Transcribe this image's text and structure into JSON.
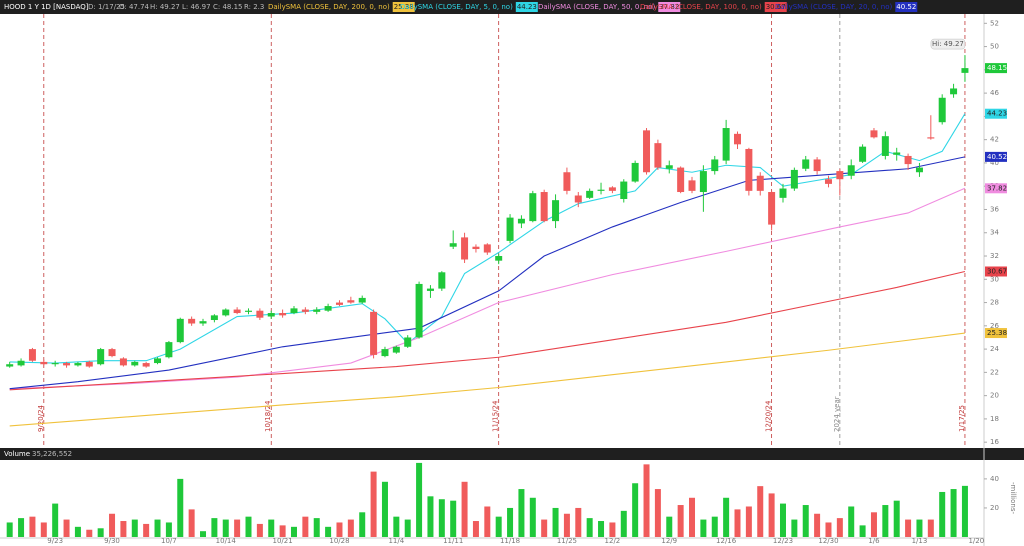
{
  "header": {
    "symbol": "HOOD 1 Y 1D [NASDAQ]",
    "date": "D: 1/17/25",
    "open": "O: 47.74",
    "high": "H: 49.27",
    "low": "L: 46.97",
    "close": "C: 48.15",
    "range": "R: 2.3"
  },
  "chart_data": [
    {
      "type": "candlestick",
      "categories": [
        null,
        null,
        null,
        null,
        "9/23",
        null,
        null,
        null,
        null,
        "9/30",
        null,
        null,
        null,
        null,
        "10/7",
        null,
        null,
        null,
        null,
        "10/14",
        null,
        null,
        null,
        null,
        "10/21",
        null,
        null,
        null,
        null,
        "10/28",
        null,
        null,
        null,
        null,
        "11/4",
        null,
        null,
        null,
        null,
        "11/11",
        null,
        null,
        null,
        null,
        "11/18",
        null,
        null,
        null,
        null,
        "11/25",
        null,
        null,
        null,
        "12/2",
        null,
        null,
        null,
        null,
        "12/9",
        null,
        null,
        null,
        null,
        "12/16",
        null,
        null,
        null,
        null,
        "12/23",
        null,
        null,
        null,
        "12/30",
        null,
        null,
        null,
        "1/6",
        null,
        null,
        null,
        "1/13",
        null,
        null,
        null,
        null,
        "1/20"
      ],
      "open": [
        22.5,
        22.6,
        24.0,
        22.9,
        22.7,
        22.8,
        22.6,
        22.9,
        22.7,
        24.0,
        23.2,
        22.6,
        22.8,
        22.8,
        23.3,
        24.6,
        26.6,
        26.2,
        26.5,
        26.9,
        27.4,
        27.2,
        27.3,
        26.8,
        27.1,
        27.1,
        27.4,
        27.2,
        27.3,
        28.0,
        28.2,
        28.0,
        27.2,
        23.4,
        23.7,
        24.2,
        25.0,
        29.0,
        29.2,
        32.8,
        33.6,
        32.8,
        33.0,
        31.6,
        33.3,
        34.8,
        35.0,
        37.5,
        35.0,
        39.2,
        37.2,
        37.0,
        37.6,
        37.9,
        36.9,
        38.4,
        42.8,
        41.7,
        39.5,
        39.6,
        38.5,
        37.5,
        39.3,
        40.2,
        42.5,
        41.2,
        38.9,
        37.5,
        37.0,
        37.8,
        39.5,
        40.3,
        38.6,
        39.3,
        38.9,
        40.1,
        42.8,
        40.6,
        40.7,
        40.6,
        39.2,
        42.2,
        43.5,
        45.9,
        47.74,
        null
      ],
      "high": [
        22.9,
        23.2,
        24.1,
        23.1,
        23.0,
        22.9,
        22.9,
        23.0,
        24.1,
        24.1,
        23.3,
        23.0,
        22.9,
        23.3,
        24.7,
        26.7,
        26.8,
        26.6,
        27.0,
        27.5,
        27.6,
        27.5,
        27.5,
        27.3,
        27.4,
        27.7,
        27.6,
        27.6,
        27.9,
        28.2,
        28.5,
        28.6,
        27.4,
        24.2,
        24.3,
        25.2,
        29.8,
        29.5,
        30.7,
        34.2,
        34.0,
        33.0,
        33.1,
        32.2,
        35.6,
        35.5,
        37.6,
        37.7,
        37.3,
        39.6,
        37.5,
        37.8,
        38.3,
        38.0,
        38.6,
        40.2,
        43.0,
        42.0,
        40.2,
        39.7,
        38.8,
        39.8,
        40.6,
        43.7,
        42.7,
        41.3,
        39.2,
        37.6,
        38.2,
        39.6,
        40.6,
        40.5,
        38.9,
        39.5,
        40.3,
        41.6,
        43.0,
        42.7,
        41.3,
        40.8,
        40.0,
        44.1,
        45.9,
        46.8,
        49.27,
        null
      ],
      "low": [
        22.4,
        22.5,
        22.9,
        22.6,
        22.5,
        22.4,
        22.5,
        22.4,
        22.6,
        23.3,
        22.5,
        22.5,
        22.4,
        22.7,
        23.2,
        24.5,
        26.0,
        26.0,
        26.3,
        26.8,
        27.0,
        27.0,
        26.5,
        26.6,
        26.7,
        27.0,
        27.0,
        27.0,
        27.2,
        27.7,
        27.9,
        27.9,
        23.2,
        23.3,
        23.6,
        24.1,
        24.9,
        28.4,
        29.0,
        32.6,
        31.4,
        32.3,
        32.1,
        31.3,
        33.1,
        34.4,
        34.9,
        34.9,
        34.4,
        37.3,
        36.2,
        36.9,
        37.3,
        37.4,
        36.6,
        38.3,
        39.0,
        39.4,
        39.1,
        37.4,
        37.4,
        35.8,
        39.0,
        39.9,
        41.2,
        37.2,
        37.2,
        34.2,
        36.6,
        37.6,
        39.3,
        39.0,
        37.9,
        37.2,
        38.6,
        40.0,
        42.1,
        40.3,
        40.2,
        39.4,
        38.8,
        42.0,
        43.3,
        45.6,
        46.97,
        null
      ],
      "close": [
        22.7,
        23.0,
        23.0,
        22.7,
        22.8,
        22.6,
        22.8,
        22.5,
        24.0,
        23.4,
        22.6,
        22.9,
        22.5,
        23.2,
        24.6,
        26.6,
        26.2,
        26.4,
        26.9,
        27.4,
        27.1,
        27.3,
        26.7,
        27.1,
        26.9,
        27.5,
        27.2,
        27.4,
        27.7,
        27.8,
        28.0,
        28.4,
        23.5,
        24.0,
        24.2,
        25.0,
        29.6,
        29.2,
        30.6,
        33.1,
        31.7,
        32.6,
        32.3,
        32.0,
        35.3,
        35.2,
        37.4,
        35.0,
        36.8,
        37.6,
        36.6,
        37.6,
        37.7,
        37.6,
        38.4,
        40.0,
        39.2,
        39.6,
        39.8,
        37.5,
        37.6,
        39.3,
        40.3,
        43.0,
        41.6,
        37.6,
        37.6,
        34.7,
        37.8,
        39.4,
        40.3,
        39.3,
        38.2,
        38.6,
        39.8,
        41.4,
        42.2,
        42.3,
        40.9,
        39.9,
        39.6,
        42.1,
        45.6,
        46.4,
        48.15,
        null
      ],
      "up_color": "#1fc83a",
      "down_color": "#f05b5b",
      "ylim": [
        15.5,
        52.8
      ],
      "yticks": [
        16,
        18,
        20,
        22,
        24,
        26,
        28,
        30,
        32,
        34,
        36,
        38,
        40,
        42,
        44,
        46,
        48,
        50,
        52
      ],
      "annotation": "Hi: 49.27",
      "events": [
        {
          "x": 3,
          "label": "9/20/24",
          "color": "#c03838"
        },
        {
          "x": 23,
          "label": "10/18/24",
          "color": "#c03838"
        },
        {
          "x": 43,
          "label": "11/15/24",
          "color": "#c03838"
        },
        {
          "x": 67,
          "label": "12/20/24",
          "color": "#c03838"
        },
        {
          "x": 73,
          "label": "2024 year",
          "color": "#888888"
        },
        {
          "x": 84,
          "label": "1/17/25",
          "color": "#c03838"
        }
      ],
      "lines": [
        {
          "name": "DailySMA (CLOSE, DAY, 200, 0, no)",
          "color": "#f0c23c",
          "x": [
            0,
            12,
            24,
            34,
            43,
            53,
            63,
            72,
            84
          ],
          "values": [
            17.4,
            18.3,
            19.2,
            19.9,
            20.7,
            21.8,
            22.9,
            23.9,
            25.38
          ]
        },
        {
          "name": "DailySMA (CLOSE, DAY, 5, 0, no)",
          "color": "#2fd6e6",
          "x": [
            0,
            4,
            8,
            12,
            15,
            20,
            25,
            31,
            33,
            35,
            38,
            40,
            43,
            47,
            50,
            55,
            57,
            60,
            63,
            66,
            68,
            71,
            74,
            77,
            80,
            82,
            84
          ],
          "values": [
            22.9,
            22.8,
            23.0,
            23.0,
            24.0,
            26.8,
            27.1,
            27.9,
            26.6,
            24.5,
            26.8,
            30.5,
            32.3,
            35.0,
            36.5,
            37.6,
            39.6,
            39.2,
            39.8,
            39.6,
            38.0,
            38.5,
            39.0,
            41.0,
            40.2,
            41.0,
            44.23
          ]
        },
        {
          "name": "DailySMA (CLOSE, DAY, 50, 0, no)",
          "color": "#f08ce0",
          "x": [
            0,
            10,
            20,
            30,
            36,
            43,
            53,
            63,
            73,
            79,
            84
          ],
          "values": [
            20.6,
            21.0,
            21.6,
            22.8,
            25.0,
            28.0,
            30.4,
            32.4,
            34.5,
            35.7,
            37.82
          ]
        },
        {
          "name": "DailySMA (CLOSE, DAY, 100, 0, no)",
          "color": "#e8434b",
          "x": [
            0,
            12,
            24,
            34,
            43,
            53,
            63,
            72,
            78,
            84
          ],
          "values": [
            20.5,
            21.2,
            21.9,
            22.5,
            23.3,
            24.8,
            26.3,
            28.1,
            29.3,
            30.67
          ]
        },
        {
          "name": "DailySMA (CLOSE, DAY, 20, 0, no)",
          "color": "#2330c0",
          "x": [
            0,
            6,
            14,
            24,
            30,
            36,
            43,
            47,
            53,
            59,
            65,
            72,
            79,
            84
          ],
          "values": [
            20.6,
            21.2,
            22.2,
            24.2,
            25.0,
            25.8,
            29.0,
            32.0,
            34.5,
            36.6,
            38.5,
            39.0,
            39.5,
            40.52
          ]
        }
      ]
    },
    {
      "type": "volume",
      "title": "Volume",
      "last_label": "35,226,552",
      "axis_label": "-millions-",
      "values": [
        10,
        13,
        14,
        10,
        23,
        12,
        7,
        5,
        6,
        16,
        11,
        12,
        9,
        12,
        10,
        40,
        19,
        4,
        13,
        12,
        12,
        14,
        9,
        12,
        8,
        7,
        14,
        13,
        7,
        10,
        12,
        17,
        45,
        38,
        14,
        12,
        51,
        28,
        26,
        25,
        38,
        11,
        21,
        14,
        20,
        33,
        27,
        12,
        20,
        16,
        20,
        13,
        11,
        10,
        18,
        37,
        50,
        33,
        14,
        22,
        27,
        12,
        14,
        27,
        19,
        21,
        35,
        30,
        23,
        12,
        22,
        16,
        10,
        13,
        21,
        8,
        17,
        22,
        25,
        12,
        12,
        12,
        31,
        33,
        35.2,
        null
      ],
      "ylim": [
        0,
        53
      ],
      "yticks": [
        20,
        40
      ]
    }
  ]
}
